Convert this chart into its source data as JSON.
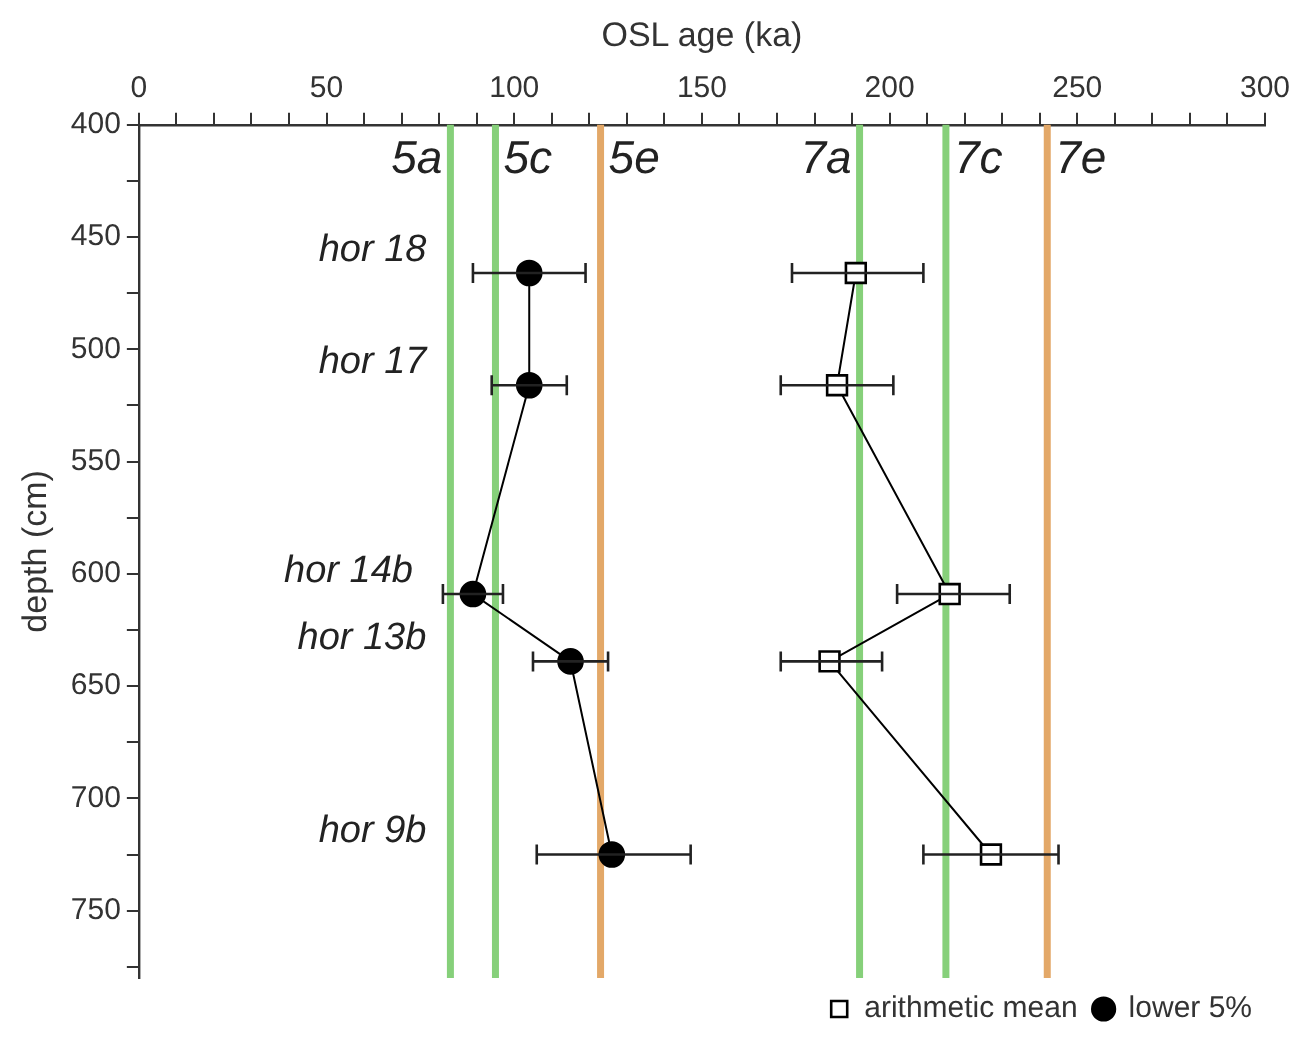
{
  "chart_data": {
    "type": "line",
    "xlabel": "OSL age (ka)",
    "ylabel": "depth (cm)",
    "xlim": [
      0,
      300
    ],
    "xticks": [
      0,
      {
        "value": 10,
        "label": null
      },
      {
        "value": 20,
        "label": null
      },
      {
        "value": 30,
        "label": null
      },
      {
        "value": 40,
        "label": null
      },
      50,
      {
        "value": 60,
        "label": null
      },
      {
        "value": 70,
        "label": null
      },
      {
        "value": 80,
        "label": null
      },
      {
        "value": 90,
        "label": null
      },
      100,
      {
        "value": 110,
        "label": null
      },
      {
        "value": 120,
        "label": null
      },
      {
        "value": 130,
        "label": null
      },
      {
        "value": 140,
        "label": null
      },
      150,
      {
        "value": 160,
        "label": null
      },
      {
        "value": 170,
        "label": null
      },
      {
        "value": 180,
        "label": null
      },
      {
        "value": 190,
        "label": null
      },
      200,
      {
        "value": 210,
        "label": null
      },
      {
        "value": 220,
        "label": null
      },
      {
        "value": 230,
        "label": null
      },
      {
        "value": 240,
        "label": null
      },
      250,
      {
        "value": 260,
        "label": null
      },
      {
        "value": 270,
        "label": null
      },
      {
        "value": 280,
        "label": null
      },
      {
        "value": 290,
        "label": null
      },
      300
    ],
    "ylim": [
      780,
      400
    ],
    "yticks": [
      400,
      {
        "value": 425,
        "label": null
      },
      450,
      {
        "value": 475,
        "label": null
      },
      500,
      {
        "value": 525,
        "label": null
      },
      550,
      {
        "value": 575,
        "label": null
      },
      600,
      {
        "value": 625,
        "label": null
      },
      650,
      {
        "value": 675,
        "label": null
      },
      700,
      {
        "value": 725,
        "label": null
      },
      750,
      {
        "value": 775,
        "label": null
      }
    ],
    "grid": false,
    "legend": "bottom",
    "series": [
      {
        "name": "arithmetic mean",
        "color": "#000000",
        "marker": "square",
        "line_style": "solid",
        "x": [
          191,
          186,
          216,
          184,
          227
        ],
        "values": [
          466,
          516,
          609,
          639,
          725
        ],
        "xerrors": [
          [
            174,
            209
          ],
          [
            171,
            201
          ],
          [
            202,
            232
          ],
          [
            171,
            198
          ],
          [
            209,
            245
          ]
        ]
      },
      {
        "name": "lower 5%",
        "color": "#000000",
        "marker": "circle",
        "line_style": "solid",
        "x": [
          104,
          104,
          89,
          115,
          126
        ],
        "values": [
          466,
          516,
          609,
          639,
          725
        ],
        "xerrors": [
          [
            89,
            119
          ],
          [
            94,
            114
          ],
          [
            81,
            97
          ],
          [
            105,
            125
          ],
          [
            106,
            147
          ]
        ]
      }
    ],
    "ref_lines": [
      {
        "axis": "x",
        "value": 83,
        "label": "5a",
        "color": "#86d07a"
      },
      {
        "axis": "x",
        "value": 95,
        "label": "5c",
        "color": "#86d07a"
      },
      {
        "axis": "x",
        "value": 123,
        "label": "5e",
        "color": "#e3a868"
      },
      {
        "axis": "x",
        "value": 192,
        "label": "7a",
        "color": "#86d07a"
      },
      {
        "axis": "x",
        "value": 215,
        "label": "7c",
        "color": "#86d07a"
      },
      {
        "axis": "x",
        "value": 242,
        "label": "7e",
        "color": "#e3a868"
      }
    ],
    "annotations": [
      "hor 18",
      "hor 17",
      "hor 14b",
      "hor 13b",
      "hor 9b"
    ]
  }
}
